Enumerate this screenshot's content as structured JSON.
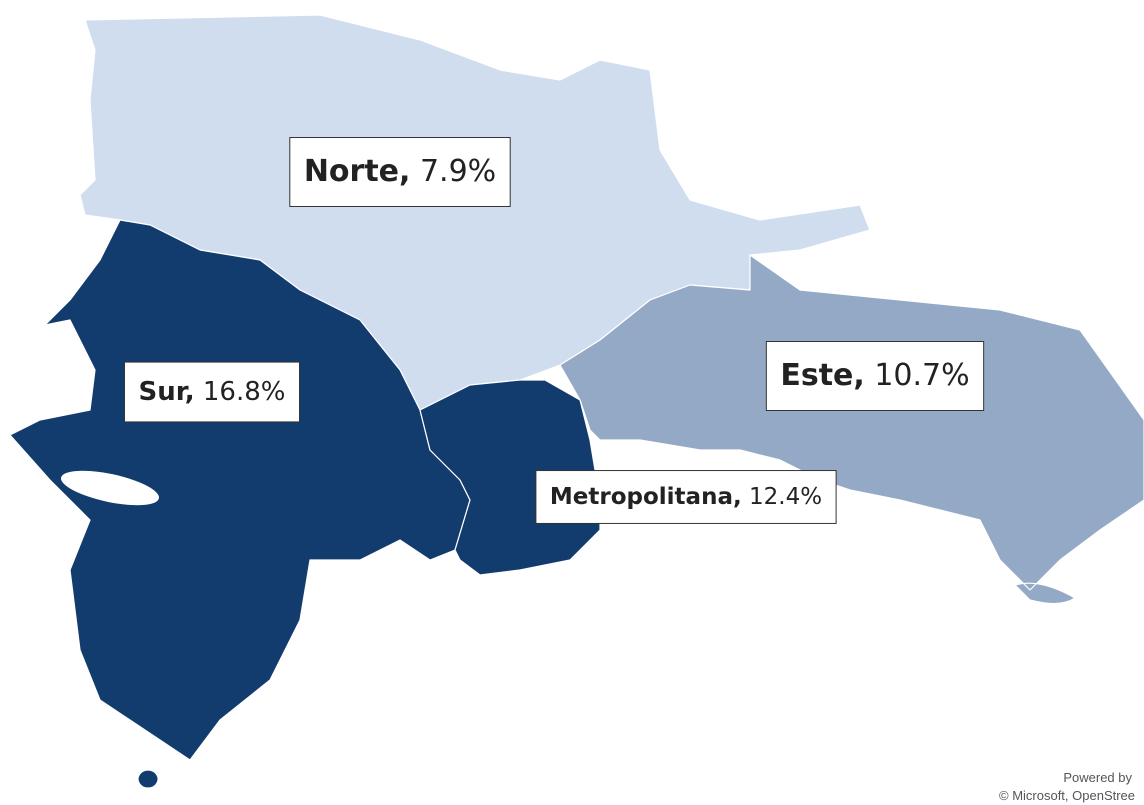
{
  "chart_data": {
    "type": "choropleth",
    "regions": [
      {
        "name": "Norte,",
        "values": [
          7.9
        ],
        "value_labels": [
          "7.9%"
        ],
        "color": "#d0ddef"
      },
      {
        "name": "Sur,",
        "values": [
          16.8
        ],
        "value_labels": [
          "16.8%"
        ],
        "color": "#133c6e"
      },
      {
        "name": "Este,",
        "values": [
          10.7
        ],
        "value_labels": [
          "10.7%"
        ],
        "color": "#94a9c6"
      },
      {
        "name": "Metropolitana,",
        "values": [
          12.4
        ],
        "value_labels": [
          "12.4%"
        ],
        "color": "#133c6e"
      }
    ],
    "attribution": [
      "Powered by",
      "© Microsoft, OpenStree"
    ]
  }
}
